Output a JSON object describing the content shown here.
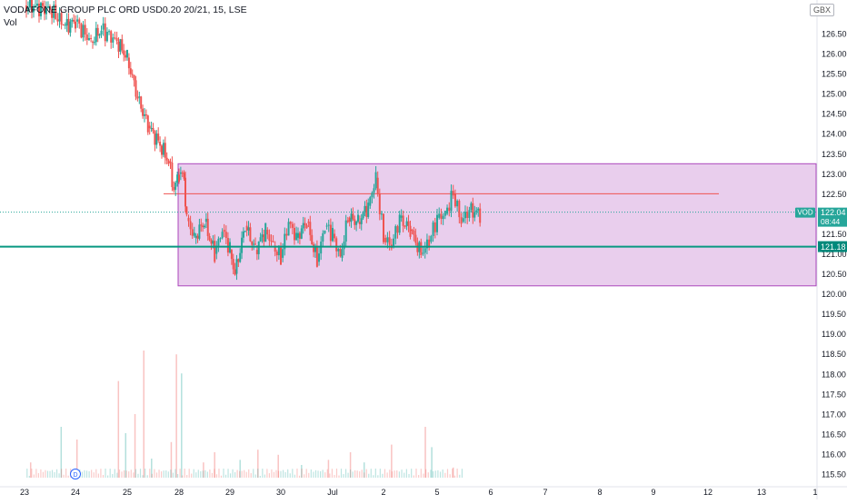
{
  "header": {
    "symbol_line": "VODAFONE GROUP PLC ORD USD0.20 20/21, 15, LSE",
    "volume_label": "Vol",
    "currency": "GBX"
  },
  "colors": {
    "up": "#26a69a",
    "down": "#ef5350",
    "range_fill": "#e1bee7",
    "range_border": "#ab47bc",
    "resistance_line": "#ef5350",
    "support_line": "#089981",
    "last_price_tag": "#26a69a",
    "support_tag": "#00897b"
  },
  "chart_data": {
    "type": "candlestick",
    "ylim": [
      115.25,
      127.0
    ],
    "y_ticks": [
      "126.50",
      "126.00",
      "125.50",
      "125.00",
      "124.50",
      "124.00",
      "123.50",
      "123.00",
      "122.50",
      "122.00",
      "121.50",
      "121.00",
      "120.50",
      "120.00",
      "119.50",
      "119.00",
      "118.50",
      "118.00",
      "117.50",
      "117.00",
      "116.50",
      "116.00",
      "115.50"
    ],
    "x_tick_labels": [
      "23",
      "24",
      "25",
      "28",
      "29",
      "30",
      "Jul",
      "2",
      "5",
      "6",
      "7",
      "8",
      "9",
      "12",
      "13",
      "1"
    ],
    "last_price": {
      "symbol": "VOD",
      "price": "122.04",
      "countdown": "08:44"
    },
    "support": {
      "price": "121.18"
    },
    "resistance": {
      "price": 122.5
    },
    "range_box": {
      "top": 123.25,
      "bottom": 120.2
    },
    "dividend_marker": "D",
    "close_path": [
      [
        23,
        127.2
      ],
      [
        23.5,
        127.1
      ],
      [
        23.8,
        126.7
      ],
      [
        24,
        126.8
      ],
      [
        24.3,
        126.3
      ],
      [
        24.5,
        126.6
      ],
      [
        24.8,
        126.3
      ],
      [
        25,
        125.9
      ],
      [
        25.2,
        124.9
      ],
      [
        25.4,
        124.2
      ],
      [
        25.6,
        123.8
      ],
      [
        25.8,
        123.3
      ],
      [
        25.9,
        122.6
      ],
      [
        26,
        123.0
      ],
      [
        26.1,
        122.9
      ],
      [
        26.15,
        121.9
      ],
      [
        26.3,
        121.4
      ],
      [
        26.5,
        121.8
      ],
      [
        26.7,
        121.0
      ],
      [
        26.85,
        121.6
      ],
      [
        27,
        121.1
      ],
      [
        27.1,
        120.5
      ],
      [
        27.3,
        121.7
      ],
      [
        27.5,
        121.1
      ],
      [
        27.7,
        121.6
      ],
      [
        27.85,
        121.2
      ],
      [
        28,
        120.9
      ],
      [
        28.15,
        121.8
      ],
      [
        28.3,
        121.4
      ],
      [
        28.5,
        121.8
      ],
      [
        28.7,
        120.8
      ],
      [
        28.85,
        121.7
      ],
      [
        29,
        121.5
      ],
      [
        29.15,
        120.9
      ],
      [
        29.3,
        121.9
      ],
      [
        29.5,
        121.8
      ],
      [
        29.7,
        122.2
      ],
      [
        29.85,
        122.9
      ],
      [
        30,
        121.4
      ],
      [
        30.15,
        121.2
      ],
      [
        30.3,
        121.9
      ],
      [
        30.5,
        121.6
      ],
      [
        30.7,
        121.0
      ],
      [
        30.85,
        121.3
      ],
      [
        31,
        121.9
      ],
      [
        31.15,
        122.0
      ],
      [
        31.3,
        122.5
      ],
      [
        31.45,
        121.8
      ],
      [
        31.6,
        122.1
      ],
      [
        31.8,
        122.0
      ]
    ],
    "volume_spikes": [
      [
        23.12,
        0.12
      ],
      [
        23.72,
        0.4
      ],
      [
        24.03,
        0.3
      ],
      [
        24.83,
        0.76
      ],
      [
        24.97,
        0.35
      ],
      [
        25.15,
        0.5
      ],
      [
        25.32,
        1.0
      ],
      [
        25.47,
        0.15
      ],
      [
        25.85,
        0.28
      ],
      [
        25.95,
        0.97
      ],
      [
        26.05,
        0.82
      ],
      [
        26.48,
        0.12
      ],
      [
        26.7,
        0.2
      ],
      [
        27.2,
        0.14
      ],
      [
        27.55,
        0.22
      ],
      [
        27.95,
        0.18
      ],
      [
        28.4,
        0.1
      ],
      [
        28.92,
        0.14
      ],
      [
        29.35,
        0.2
      ],
      [
        29.62,
        0.12
      ],
      [
        30.15,
        0.26
      ],
      [
        30.78,
        0.4
      ],
      [
        30.9,
        0.24
      ],
      [
        31.3,
        0.08
      ]
    ]
  }
}
